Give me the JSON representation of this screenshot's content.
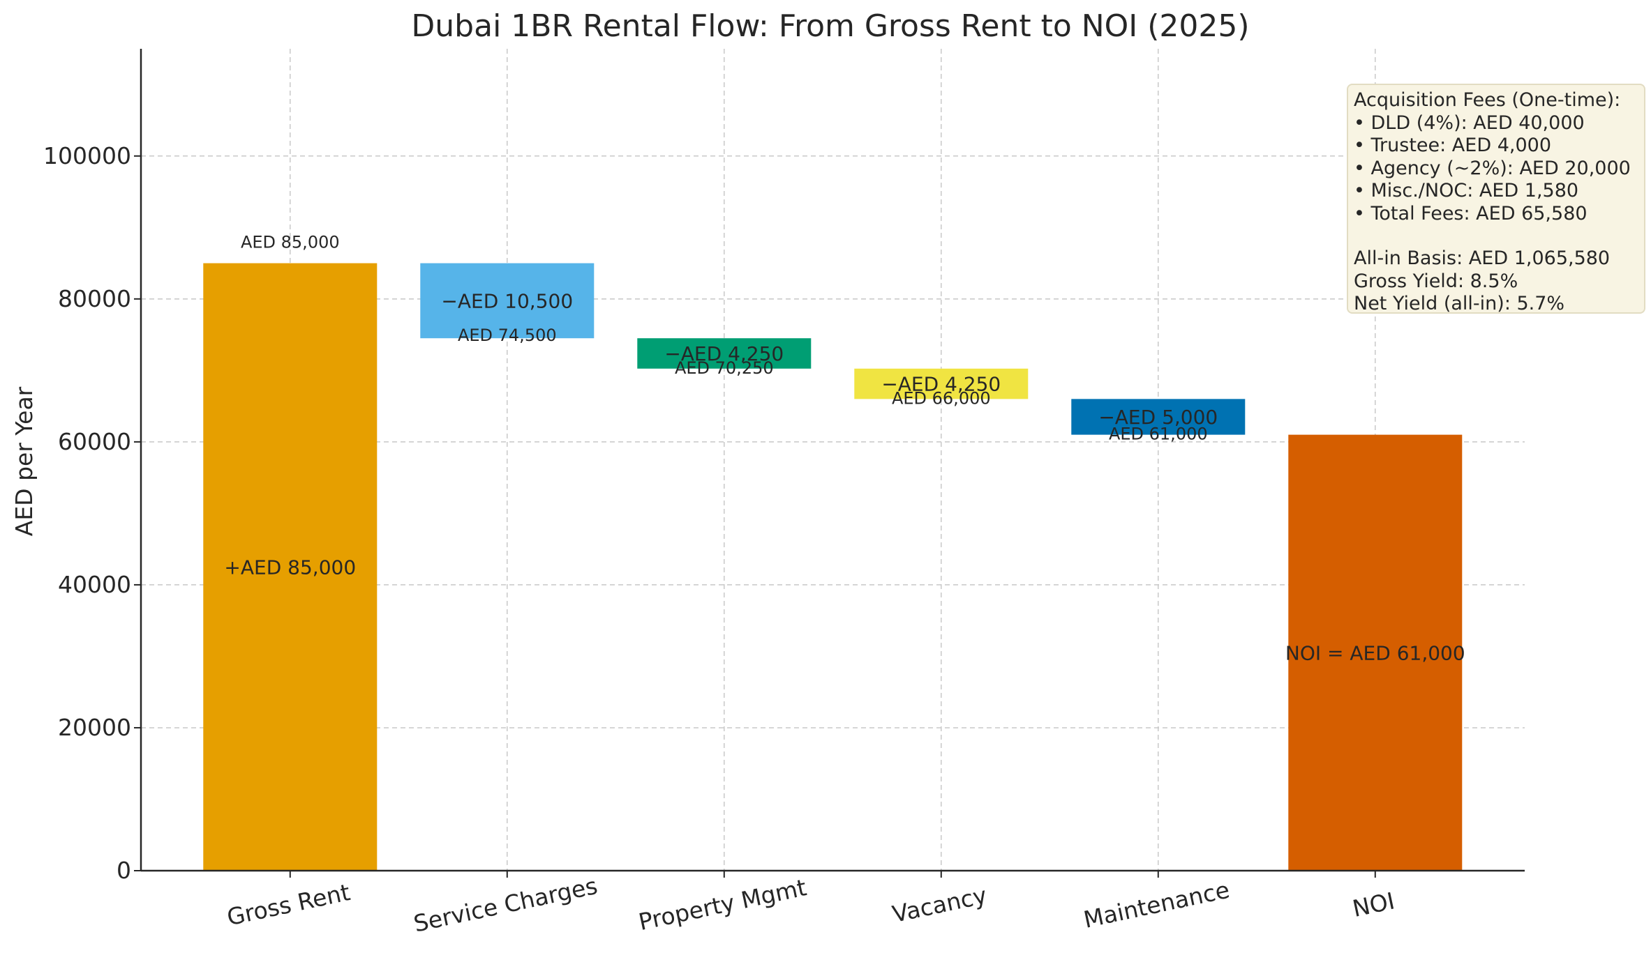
{
  "chart_data": {
    "type": "bar",
    "subtype": "waterfall",
    "title": "Dubai 1BR Rental Flow: From Gross Rent to NOI (2025)",
    "xlabel": "",
    "ylabel": "AED per Year",
    "ylim": [
      0,
      115000
    ],
    "yticks": [
      "0",
      "20000",
      "40000",
      "60000",
      "80000",
      "100000"
    ],
    "grid": true,
    "categories": [
      "Gross Rent",
      "Service Charges",
      "Property Mgmt",
      "Vacancy",
      "Maintenance",
      "NOI"
    ],
    "steps": [
      {
        "category": "Gross Rent",
        "kind": "total",
        "start": 0,
        "end": 85000,
        "color": "#E69F00",
        "top_label": "AED 85,000",
        "mid_label": "+AED 85,000"
      },
      {
        "category": "Service Charges",
        "kind": "delta",
        "start": 85000,
        "end": 74500,
        "color": "#56B4E9",
        "top_label": "AED 74,500",
        "mid_label": "−AED 10,500"
      },
      {
        "category": "Property Mgmt",
        "kind": "delta",
        "start": 74500,
        "end": 70250,
        "color": "#009E73",
        "top_label": "AED 70,250",
        "mid_label": "−AED 4,250"
      },
      {
        "category": "Vacancy",
        "kind": "delta",
        "start": 70250,
        "end": 66000,
        "color": "#F0E442",
        "top_label": "AED 66,000",
        "mid_label": "−AED 4,250"
      },
      {
        "category": "Maintenance",
        "kind": "delta",
        "start": 66000,
        "end": 61000,
        "color": "#0072B2",
        "top_label": "AED 61,000",
        "mid_label": "−AED 5,000"
      },
      {
        "category": "NOI",
        "kind": "total",
        "start": 0,
        "end": 61000,
        "color": "#D55E00",
        "top_label": "",
        "mid_label": "NOI = AED 61,000"
      }
    ],
    "annotation": {
      "lines_top": [
        "Acquisition Fees (One-time):",
        "• DLD (4%): AED 40,000",
        "• Trustee: AED 4,000",
        "• Agency (~2%): AED 20,000",
        "• Misc./NOC: AED 1,580",
        "• Total Fees: AED 65,580"
      ],
      "lines_bottom": [
        "All-in Basis: AED 1,065,580",
        "Gross Yield: 8.5%",
        "Net Yield (all-in): 5.7%"
      ]
    }
  }
}
